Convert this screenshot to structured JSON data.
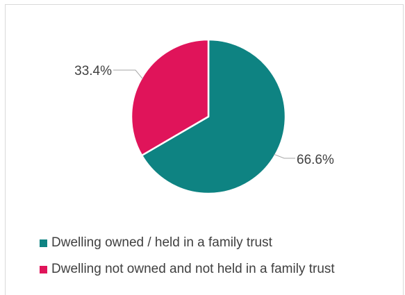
{
  "chart_data": {
    "type": "pie",
    "title": "",
    "slices": [
      {
        "name": "Dwelling owned / held in a family trust",
        "value": 66.6,
        "label": "66.6%",
        "color": "#0e8382"
      },
      {
        "name": "Dwelling not owned and not held in a family trust",
        "value": 33.4,
        "label": "33.4%",
        "color": "#e0145a"
      }
    ],
    "start_angle_deg": 0,
    "direction": "clockwise",
    "legend_position": "bottom-left",
    "leader_color": "#a6a6a6",
    "label_color": "#404040"
  }
}
